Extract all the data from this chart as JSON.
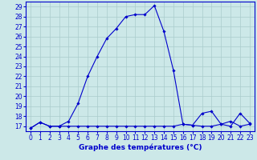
{
  "line1_x": [
    0,
    1,
    2,
    3,
    4,
    5,
    6,
    7,
    8,
    9,
    10,
    11,
    12,
    13,
    14,
    15,
    16,
    17,
    18,
    19,
    20,
    21,
    22,
    23
  ],
  "line1_y": [
    16.8,
    17.4,
    17.0,
    17.0,
    17.5,
    19.3,
    22.0,
    24.0,
    25.8,
    26.8,
    28.0,
    28.2,
    28.2,
    29.1,
    26.5,
    22.6,
    17.2,
    17.1,
    18.3,
    18.5,
    17.2,
    17.0,
    18.3,
    17.3
  ],
  "line2_x": [
    0,
    1,
    2,
    3,
    4,
    5,
    6,
    7,
    8,
    9,
    10,
    11,
    12,
    13,
    14,
    15,
    16,
    17,
    18,
    19,
    20,
    21,
    22,
    23
  ],
  "line2_y": [
    16.8,
    17.4,
    17.0,
    17.0,
    17.0,
    17.0,
    17.0,
    17.0,
    17.0,
    17.0,
    17.0,
    17.0,
    17.0,
    17.0,
    17.0,
    17.0,
    17.2,
    17.1,
    17.0,
    17.0,
    17.2,
    17.5,
    17.0,
    17.2
  ],
  "line_color": "#0000cc",
  "marker": "D",
  "marker_size": 1.8,
  "bg_color": "#cce8e8",
  "grid_color": "#aacccc",
  "xlabel": "Graphe des températures (°C)",
  "xlim": [
    -0.5,
    23.5
  ],
  "ylim": [
    16.5,
    29.5
  ],
  "yticks": [
    17,
    18,
    19,
    20,
    21,
    22,
    23,
    24,
    25,
    26,
    27,
    28,
    29
  ],
  "xticks": [
    0,
    1,
    2,
    3,
    4,
    5,
    6,
    7,
    8,
    9,
    10,
    11,
    12,
    13,
    14,
    15,
    16,
    17,
    18,
    19,
    20,
    21,
    22,
    23
  ],
  "tick_color": "#0000cc",
  "axis_color": "#0000cc",
  "label_color": "#0000cc",
  "tick_fontsize": 5.5,
  "label_fontsize": 6.5
}
